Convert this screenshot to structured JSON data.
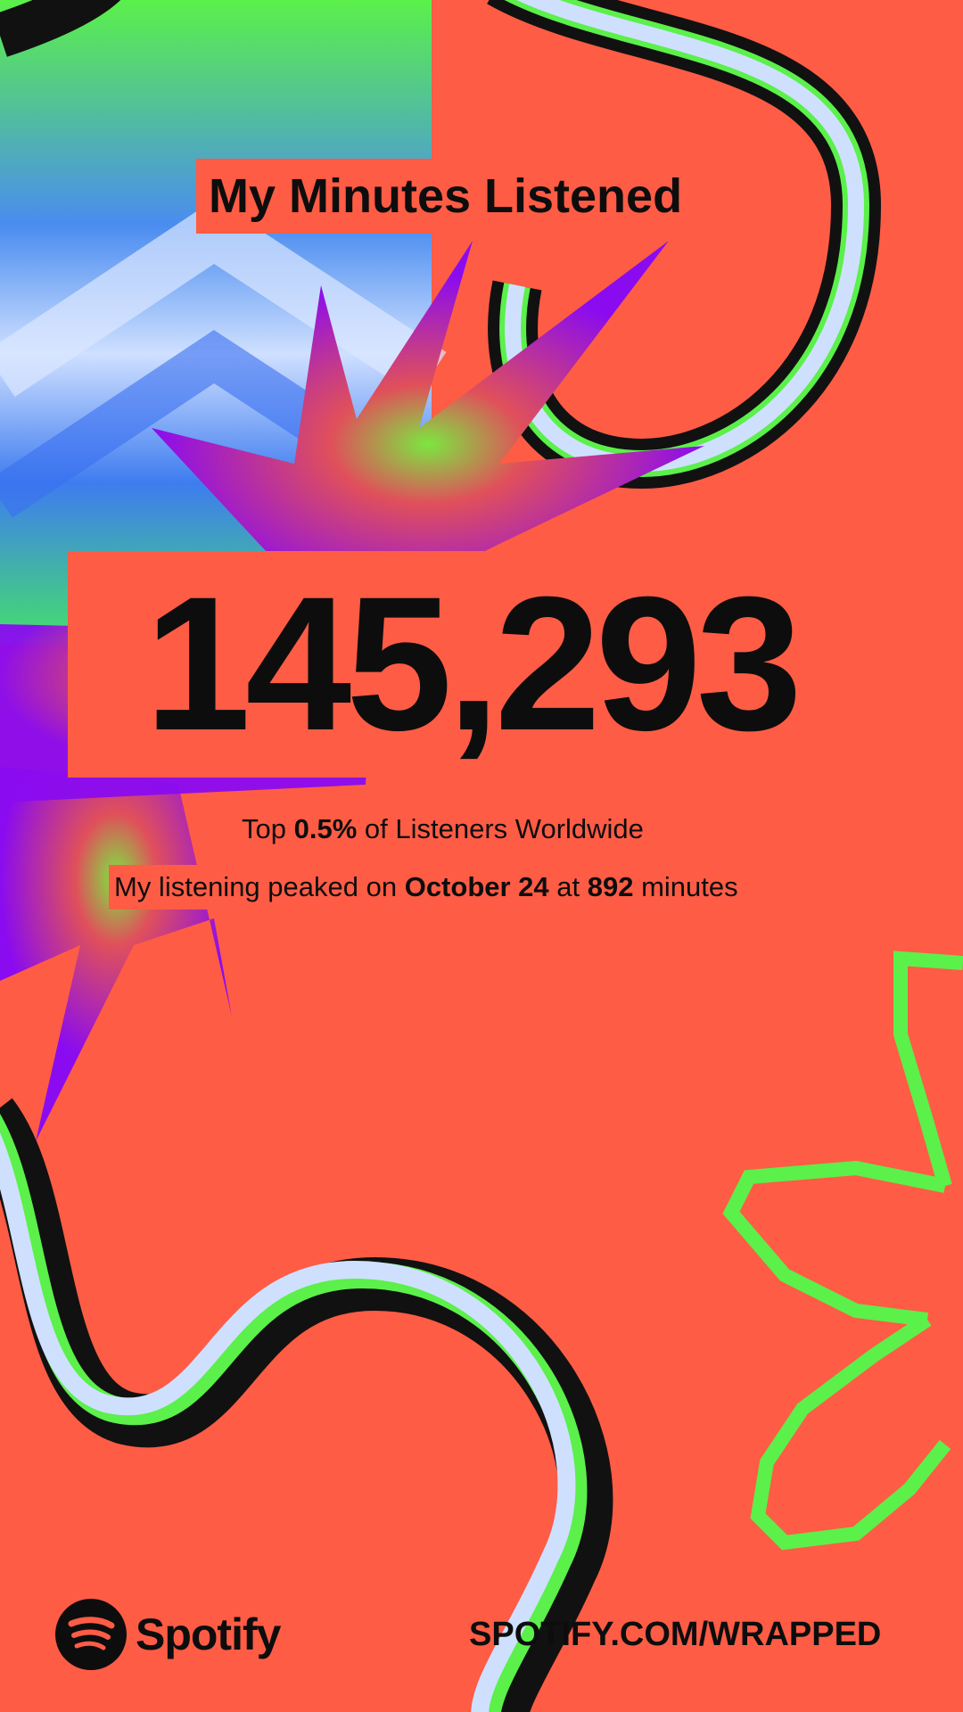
{
  "title": "My Minutes Listened",
  "minutes": "145,293",
  "stats": {
    "top_prefix": "Top ",
    "top_value": "0.5%",
    "top_suffix": " of Listeners Worldwide",
    "peak_prefix": "My listening peaked on ",
    "peak_date": "October 24",
    "peak_mid": " at ",
    "peak_minutes": "892",
    "peak_suffix": " minutes"
  },
  "footer": {
    "brand": "Spotify",
    "url": "SPOTIFY.COM/WRAPPED"
  },
  "colors": {
    "background": "#FF5C45",
    "text": "#0d0d0d",
    "accent_green": "#5BF04A",
    "accent_purple": "#8A0BF0"
  },
  "icons": {
    "logo": "spotify-logo-icon"
  }
}
